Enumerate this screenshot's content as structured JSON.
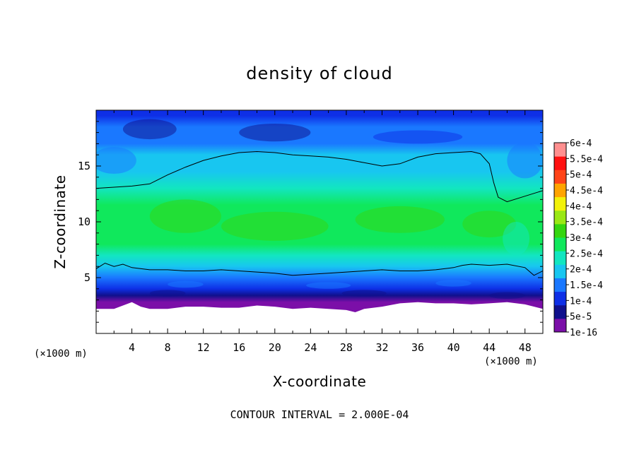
{
  "chart_data": {
    "type": "heatmap",
    "title": "density of cloud",
    "xlabel": "X-coordinate",
    "ylabel": "Z-coordinate",
    "x_unit": "(×1000 m)",
    "footer": "CONTOUR INTERVAL = 2.000E-04",
    "xlim": [
      0,
      50
    ],
    "ylim": [
      0,
      20
    ],
    "x_ticks": [
      "4",
      "8",
      "12",
      "16",
      "20",
      "24",
      "28",
      "32",
      "36",
      "40",
      "44",
      "48"
    ],
    "y_ticks": [
      "5",
      "10",
      "15"
    ],
    "colorbar": {
      "labels": [
        "1e-16",
        "5e-5",
        "1e-4",
        "1.5e-4",
        "2e-4",
        "2.5e-4",
        "3e-4",
        "3.5e-4",
        "4e-4",
        "4.5e-4",
        "5e-4",
        "5.5e-4",
        "6e-4"
      ],
      "colors": [
        "#7b0fa8",
        "#10108c",
        "#0e2fe6",
        "#1a78ff",
        "#18c6f0",
        "#12e6c0",
        "#10e85c",
        "#34d610",
        "#9ae814",
        "#f2f20a",
        "#ffa400",
        "#ff4418",
        "#ff1010",
        "#ff8f8f"
      ]
    },
    "contours": [
      {
        "level": "2e-4",
        "upper_boundary": {
          "x": [
            0,
            2,
            4,
            6,
            8,
            10,
            12,
            14,
            16,
            18,
            20,
            22,
            24,
            26,
            28,
            30,
            32,
            34,
            36,
            38,
            40,
            42,
            43,
            44,
            44.5,
            45,
            46,
            48,
            50
          ],
          "z": [
            13.0,
            13.1,
            13.2,
            13.4,
            14.2,
            14.9,
            15.5,
            15.9,
            16.2,
            16.3,
            16.2,
            16.0,
            15.9,
            15.8,
            15.6,
            15.3,
            15.0,
            15.2,
            15.8,
            16.1,
            16.2,
            16.3,
            16.1,
            15.2,
            13.5,
            12.2,
            11.8,
            12.3,
            12.8
          ]
        },
        "lower_boundary": {
          "x": [
            0,
            1,
            2,
            3,
            4,
            6,
            8,
            10,
            12,
            14,
            16,
            18,
            20,
            22,
            24,
            26,
            28,
            30,
            32,
            34,
            36,
            38,
            40,
            41,
            42,
            44,
            46,
            48,
            49,
            50
          ],
          "z": [
            5.8,
            6.3,
            6.0,
            6.2,
            5.9,
            5.7,
            5.7,
            5.6,
            5.6,
            5.7,
            5.6,
            5.5,
            5.4,
            5.2,
            5.3,
            5.4,
            5.5,
            5.6,
            5.7,
            5.6,
            5.6,
            5.7,
            5.9,
            6.1,
            6.2,
            6.1,
            6.2,
            5.9,
            5.2,
            5.6
          ]
        }
      }
    ],
    "cloud_base": {
      "x": [
        0,
        2,
        4,
        5,
        6,
        8,
        10,
        12,
        14,
        16,
        18,
        20,
        22,
        24,
        26,
        28,
        29,
        30,
        32,
        34,
        36,
        38,
        40,
        42,
        44,
        46,
        48,
        50
      ],
      "z": [
        2.2,
        2.2,
        2.8,
        2.4,
        2.2,
        2.2,
        2.4,
        2.4,
        2.3,
        2.3,
        2.5,
        2.4,
        2.2,
        2.3,
        2.2,
        2.1,
        1.9,
        2.2,
        2.4,
        2.7,
        2.8,
        2.7,
        2.7,
        2.6,
        2.7,
        2.8,
        2.6,
        2.2
      ]
    },
    "field_rows": [
      {
        "z": 20.0,
        "level": 2
      },
      {
        "z": 19.5,
        "level": 2
      },
      {
        "z": 18.5,
        "level": 3
      },
      {
        "z": 17.0,
        "level": 3
      },
      {
        "z": 16.0,
        "level": 4
      },
      {
        "z": 14.5,
        "level": 4
      },
      {
        "z": 13.0,
        "level": 5
      },
      {
        "z": 11.5,
        "level": 6
      },
      {
        "z": 8.0,
        "level": 6
      },
      {
        "z": 7.0,
        "level": 5
      },
      {
        "z": 6.0,
        "level": 4
      },
      {
        "z": 5.0,
        "level": 3
      },
      {
        "z": 4.0,
        "level": 2
      },
      {
        "z": 3.4,
        "level": 1
      },
      {
        "z": 2.8,
        "level": 0
      },
      {
        "z": 2.3,
        "level": 0
      }
    ]
  }
}
